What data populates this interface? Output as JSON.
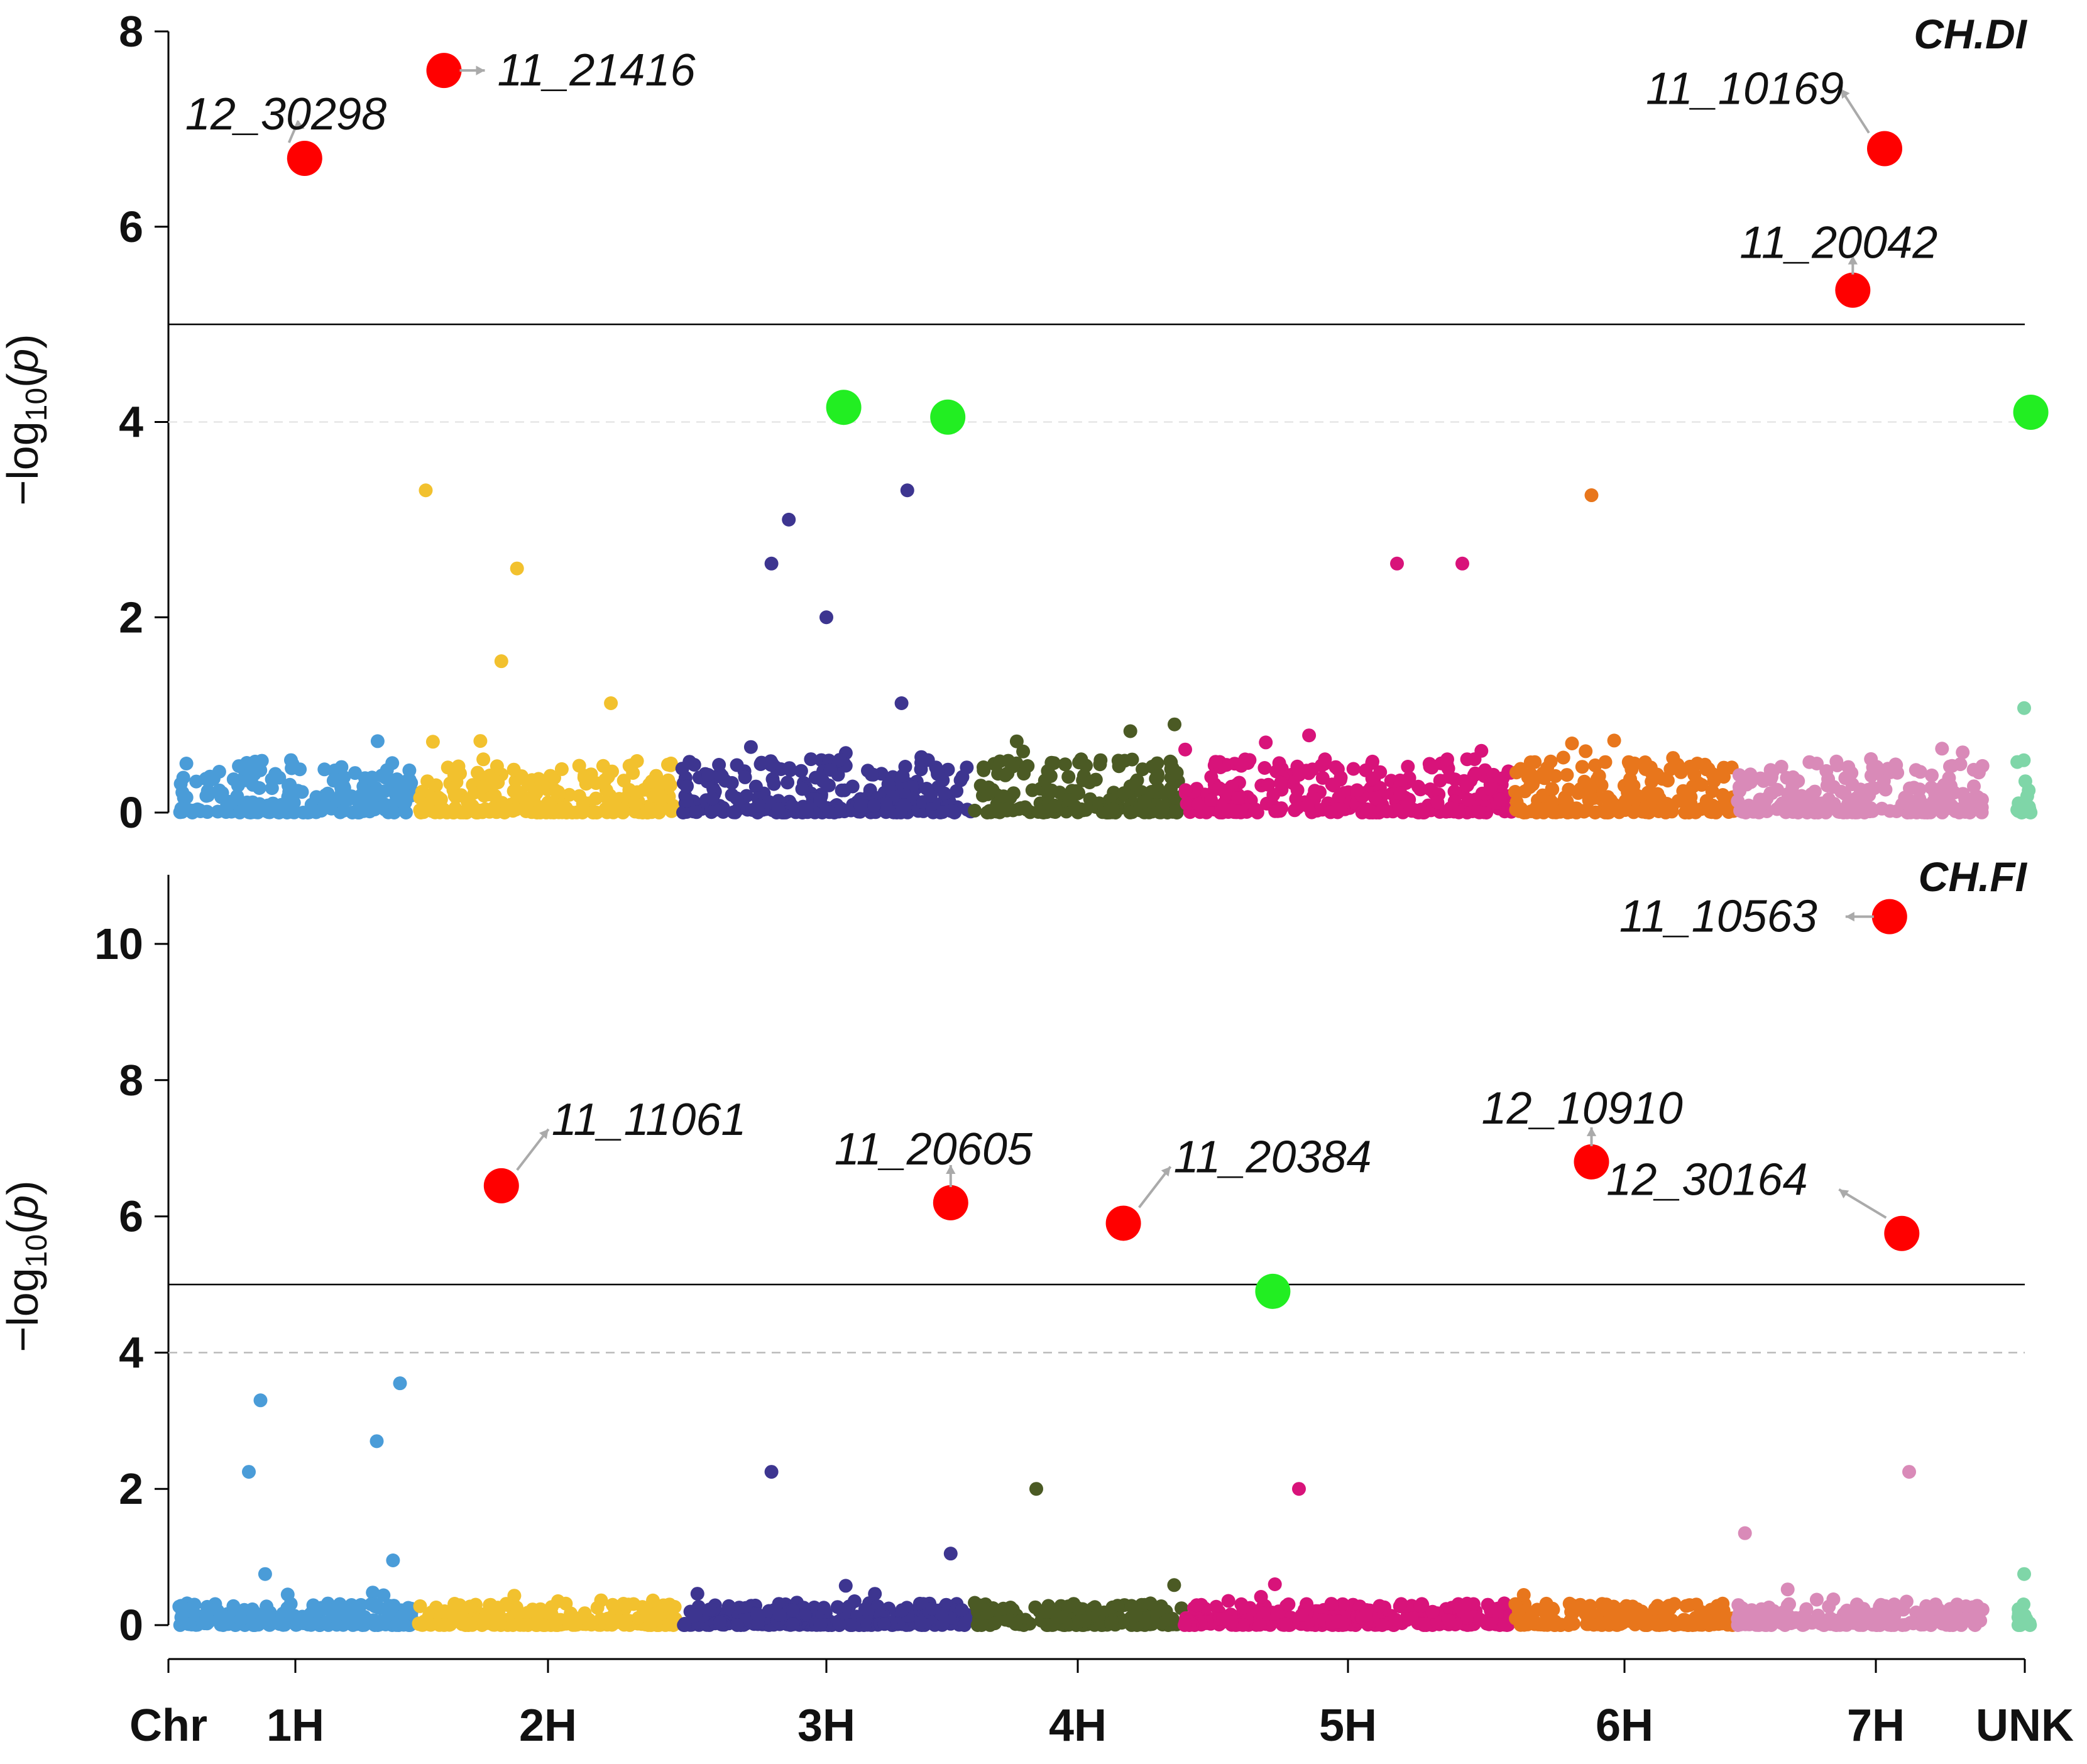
{
  "chart_data": {
    "type": "scatter",
    "subtype": "manhattan",
    "chromosomes": [
      "1H",
      "2H",
      "3H",
      "4H",
      "5H",
      "6H",
      "7H",
      "UNK"
    ],
    "x_axis_title": "Chr",
    "ylabel_prefix": "−log",
    "ylabel_sub": "10",
    "ylabel_open": "(",
    "ylabel_var": "p",
    "ylabel_close": ")",
    "colors": {
      "1H": "#4a9cd8",
      "2H": "#f2c12e",
      "3H": "#3d3590",
      "4H": "#4b5a24",
      "5H": "#d8137a",
      "6H": "#e8761c",
      "7H": "#d98ab8",
      "UNK": "#7fd6a8",
      "significant": "#ff0000",
      "suggestive": "#22ee22"
    },
    "panels": [
      {
        "title": "CH.DI",
        "ylim": [
          0,
          8
        ],
        "yticks": [
          "0",
          "2",
          "4",
          "6",
          "8"
        ],
        "significance_threshold": 5,
        "suggestive_threshold": 4,
        "significant_snps": [
          {
            "label": "12_30298",
            "chr": "1H",
            "pos": 0.54,
            "p": 6.7
          },
          {
            "label": "11_21416",
            "chr": "2H",
            "pos": 0.1,
            "p": 7.6
          },
          {
            "label": "11_10169",
            "chr": "7H",
            "pos": 0.6,
            "p": 6.8
          },
          {
            "label": "11_20042",
            "chr": "7H",
            "pos": 0.47,
            "p": 5.35
          }
        ],
        "suggestive_snps": [
          {
            "chr": "3H",
            "pos": 0.56,
            "p": 4.15
          },
          {
            "chr": "3H",
            "pos": 0.92,
            "p": 4.05
          },
          {
            "chr": "UNK",
            "pos": 0.98,
            "p": 4.1
          }
        ],
        "notable_points": [
          {
            "chr": "2H",
            "pos": 0.03,
            "p": 3.3
          },
          {
            "chr": "2H",
            "pos": 0.38,
            "p": 2.5
          },
          {
            "chr": "2H",
            "pos": 0.32,
            "p": 1.55
          },
          {
            "chr": "2H",
            "pos": 0.74,
            "p": 1.12
          },
          {
            "chr": "3H",
            "pos": 0.31,
            "p": 2.55
          },
          {
            "chr": "3H",
            "pos": 0.37,
            "p": 3.0
          },
          {
            "chr": "3H",
            "pos": 0.5,
            "p": 2.0
          },
          {
            "chr": "3H",
            "pos": 0.78,
            "p": 3.3
          },
          {
            "chr": "3H",
            "pos": 0.76,
            "p": 1.12
          },
          {
            "chr": "5H",
            "pos": 0.65,
            "p": 2.55
          },
          {
            "chr": "5H",
            "pos": 0.85,
            "p": 2.55
          },
          {
            "chr": "6H",
            "pos": 0.35,
            "p": 3.25
          },
          {
            "chr": "UNK",
            "pos": 0.5,
            "p": 1.07
          }
        ]
      },
      {
        "title": "CH.FI",
        "ylim": [
          0,
          11
        ],
        "yticks": [
          "0",
          "2",
          "4",
          "6",
          "8",
          "10"
        ],
        "significance_threshold": 5,
        "suggestive_threshold": 4,
        "significant_snps": [
          {
            "label": "11_10563",
            "chr": "7H",
            "pos": 0.62,
            "p": 10.4
          },
          {
            "label": "11_11061",
            "chr": "2H",
            "pos": 0.32,
            "p": 6.45
          },
          {
            "label": "11_20605",
            "chr": "3H",
            "pos": 0.93,
            "p": 6.2
          },
          {
            "label": "11_20384",
            "chr": "4H",
            "pos": 0.72,
            "p": 5.9
          },
          {
            "label": "12_10910",
            "chr": "6H",
            "pos": 0.35,
            "p": 6.8
          },
          {
            "label": "12_30164",
            "chr": "7H",
            "pos": 0.67,
            "p": 5.75
          }
        ],
        "suggestive_snps": [
          {
            "chr": "5H",
            "pos": 0.27,
            "p": 4.9
          }
        ],
        "notable_points": [
          {
            "chr": "1H",
            "pos": 0.3,
            "p": 2.25
          },
          {
            "chr": "1H",
            "pos": 0.35,
            "p": 3.3
          },
          {
            "chr": "1H",
            "pos": 0.85,
            "p": 2.7
          },
          {
            "chr": "1H",
            "pos": 0.95,
            "p": 3.55
          },
          {
            "chr": "1H",
            "pos": 0.92,
            "p": 0.95
          },
          {
            "chr": "1H",
            "pos": 0.37,
            "p": 0.75
          },
          {
            "chr": "3H",
            "pos": 0.31,
            "p": 2.25
          },
          {
            "chr": "3H",
            "pos": 0.93,
            "p": 1.05
          },
          {
            "chr": "4H",
            "pos": 0.3,
            "p": 2.0
          },
          {
            "chr": "5H",
            "pos": 0.35,
            "p": 2.0
          },
          {
            "chr": "7H",
            "pos": 0.7,
            "p": 2.25
          },
          {
            "chr": "7H",
            "pos": 0.03,
            "p": 1.35
          },
          {
            "chr": "UNK",
            "pos": 0.5,
            "p": 0.75
          }
        ]
      }
    ]
  }
}
